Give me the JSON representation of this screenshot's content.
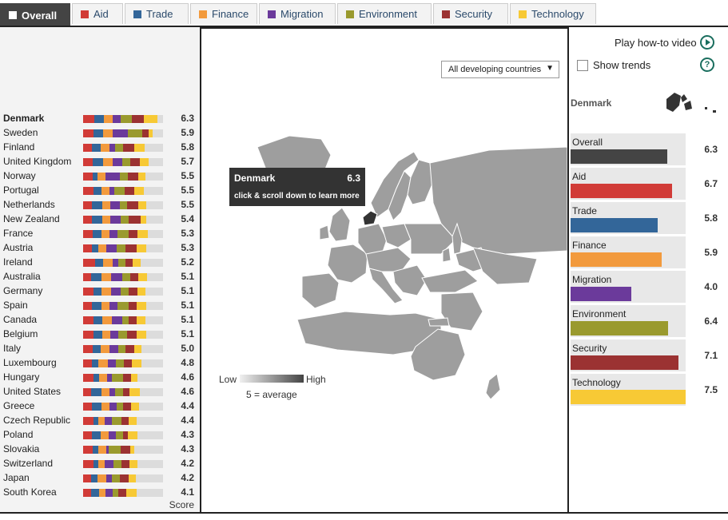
{
  "tabs": [
    {
      "label": "Overall",
      "color": "#ffffff",
      "active": true
    },
    {
      "label": "Aid",
      "color": "#d13b37"
    },
    {
      "label": "Trade",
      "color": "#336699"
    },
    {
      "label": "Finance",
      "color": "#f29a3d"
    },
    {
      "label": "Migration",
      "color": "#6b3a9b"
    },
    {
      "label": "Environment",
      "color": "#9a9a2e"
    },
    {
      "label": "Security",
      "color": "#9b3232"
    },
    {
      "label": "Technology",
      "color": "#f7c935"
    }
  ],
  "controls": {
    "region_select": "All developing countries",
    "play_video": "Play how-to video",
    "show_trends": "Show trends"
  },
  "countries": [
    {
      "name": "Denmark",
      "score": "6.3",
      "selected": true,
      "segs": [
        14,
        12,
        11,
        10,
        14,
        15,
        17
      ]
    },
    {
      "name": "Sweden",
      "score": "5.9",
      "segs": [
        13,
        12,
        12,
        19,
        18,
        8,
        5
      ]
    },
    {
      "name": "Finland",
      "score": "5.8",
      "segs": [
        11,
        11,
        11,
        7,
        10,
        14,
        13
      ]
    },
    {
      "name": "United Kingdom",
      "score": "5.7",
      "segs": [
        12,
        13,
        12,
        12,
        10,
        12,
        11
      ]
    },
    {
      "name": "Norway",
      "score": "5.5",
      "segs": [
        12,
        6,
        10,
        18,
        10,
        13,
        9
      ]
    },
    {
      "name": "Portugal",
      "score": "5.5",
      "segs": [
        13,
        10,
        10,
        6,
        13,
        12,
        12
      ]
    },
    {
      "name": "Netherlands",
      "score": "5.5",
      "segs": [
        11,
        13,
        10,
        12,
        9,
        14,
        10
      ]
    },
    {
      "name": "New Zealand",
      "score": "5.4",
      "segs": [
        11,
        13,
        10,
        13,
        10,
        15,
        7
      ]
    },
    {
      "name": "France",
      "score": "5.3",
      "segs": [
        12,
        11,
        10,
        10,
        14,
        11,
        13
      ]
    },
    {
      "name": "Austria",
      "score": "5.3",
      "segs": [
        11,
        8,
        10,
        13,
        11,
        14,
        12
      ]
    },
    {
      "name": "Ireland",
      "score": "5.2",
      "segs": [
        15,
        10,
        12,
        7,
        9,
        9,
        10
      ]
    },
    {
      "name": "Australia",
      "score": "5.1",
      "segs": [
        10,
        13,
        12,
        14,
        10,
        10,
        11
      ]
    },
    {
      "name": "Germany",
      "score": "5.1",
      "segs": [
        13,
        10,
        12,
        12,
        10,
        11,
        10
      ]
    },
    {
      "name": "Spain",
      "score": "5.1",
      "segs": [
        11,
        12,
        10,
        10,
        14,
        10,
        12
      ]
    },
    {
      "name": "Canada",
      "score": "5.1",
      "segs": [
        13,
        11,
        12,
        13,
        8,
        10,
        11
      ]
    },
    {
      "name": "Belgium",
      "score": "5.1",
      "segs": [
        13,
        11,
        10,
        10,
        11,
        12,
        12
      ]
    },
    {
      "name": "Italy",
      "score": "5.0",
      "segs": [
        12,
        10,
        11,
        11,
        9,
        11,
        9
      ]
    },
    {
      "name": "Luxembourg",
      "score": "4.8",
      "segs": [
        11,
        8,
        12,
        10,
        10,
        10,
        12
      ]
    },
    {
      "name": "Hungary",
      "score": "4.6",
      "segs": [
        13,
        7,
        10,
        6,
        14,
        10,
        8
      ]
    },
    {
      "name": "United States",
      "score": "4.6",
      "segs": [
        10,
        13,
        10,
        7,
        10,
        8,
        13
      ]
    },
    {
      "name": "Greece",
      "score": "4.4",
      "segs": [
        11,
        12,
        10,
        9,
        8,
        10,
        10
      ]
    },
    {
      "name": "Czech Republic",
      "score": "4.4",
      "segs": [
        13,
        6,
        8,
        9,
        12,
        9,
        10
      ]
    },
    {
      "name": "Poland",
      "score": "4.3",
      "segs": [
        11,
        11,
        10,
        9,
        9,
        6,
        12
      ]
    },
    {
      "name": "Slovakia",
      "score": "4.3",
      "segs": [
        12,
        7,
        10,
        3,
        15,
        12,
        5
      ]
    },
    {
      "name": "Switzerland",
      "score": "4.2",
      "segs": [
        13,
        6,
        8,
        11,
        10,
        10,
        10
      ]
    },
    {
      "name": "Japan",
      "score": "4.2",
      "segs": [
        10,
        8,
        11,
        7,
        10,
        11,
        9
      ]
    },
    {
      "name": "South Korea",
      "score": "4.1",
      "segs": [
        10,
        10,
        8,
        9,
        7,
        10,
        13
      ]
    }
  ],
  "score_label": "Score",
  "segment_colors": [
    "#d13b37",
    "#336699",
    "#f29a3d",
    "#6b3a9b",
    "#9a9a2e",
    "#9b3232",
    "#f7c935"
  ],
  "legend": {
    "low": "Low",
    "high": "High",
    "average": "5 = average"
  },
  "tooltip": {
    "country": "Denmark",
    "score": "6.3",
    "hint": "click & scroll down to learn more"
  },
  "detail": {
    "country": "Denmark",
    "categories": [
      {
        "label": "Overall",
        "value": "6.3",
        "fill": 0.84,
        "color": "#444444"
      },
      {
        "label": "Aid",
        "value": "6.7",
        "fill": 0.88,
        "color": "#d13b37"
      },
      {
        "label": "Trade",
        "value": "5.8",
        "fill": 0.76,
        "color": "#336699"
      },
      {
        "label": "Finance",
        "value": "5.9",
        "fill": 0.79,
        "color": "#f29a3d"
      },
      {
        "label": "Migration",
        "value": "4.0",
        "fill": 0.53,
        "color": "#6b3a9b"
      },
      {
        "label": "Environment",
        "value": "6.4",
        "fill": 0.85,
        "color": "#9a9a2e"
      },
      {
        "label": "Security",
        "value": "7.1",
        "fill": 0.94,
        "color": "#9b3232"
      },
      {
        "label": "Technology",
        "value": "7.5",
        "fill": 1.0,
        "color": "#f7c935"
      }
    ]
  }
}
